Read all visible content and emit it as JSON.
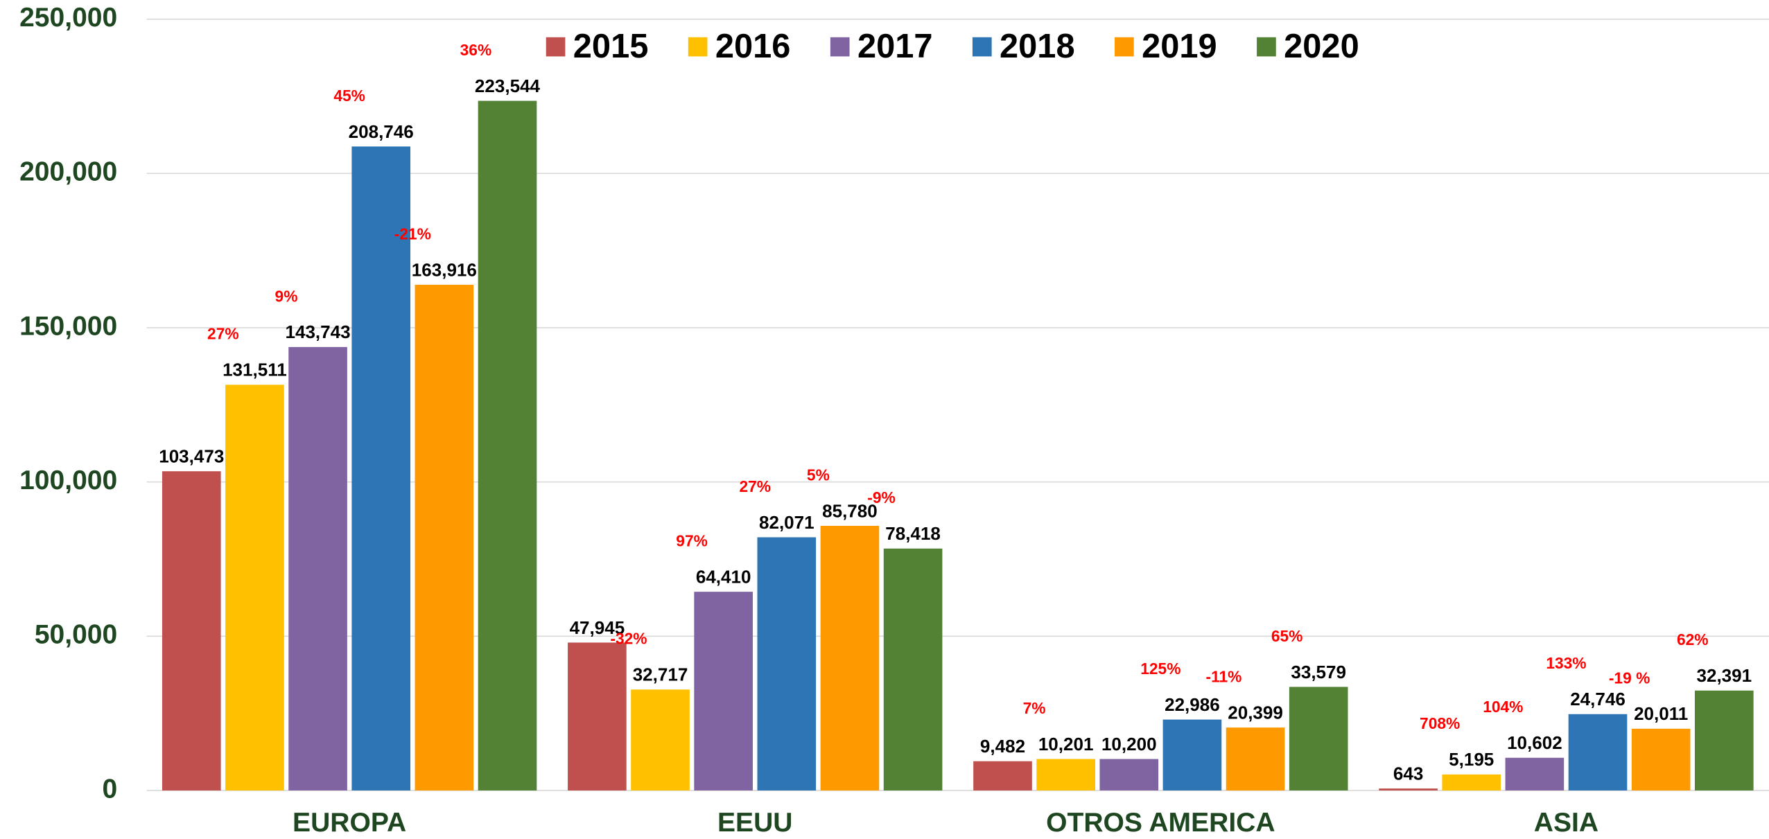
{
  "chart_data": {
    "type": "bar",
    "categories": [
      "EUROPA",
      "EEUU",
      "OTROS AMERICA",
      "ASIA"
    ],
    "series": [
      {
        "name": "2015",
        "color": "#c0504d",
        "values": [
          103473,
          47945,
          9482,
          643
        ],
        "value_labels": [
          "103,473",
          "47,945",
          "9,482",
          "643"
        ]
      },
      {
        "name": "2016",
        "color": "#ffc000",
        "values": [
          131511,
          32717,
          10201,
          5195
        ],
        "value_labels": [
          "131,511",
          "32,717",
          "10,201",
          "5,195"
        ],
        "change_labels": [
          "27%",
          "-32%",
          "7%",
          "708%"
        ]
      },
      {
        "name": "2017",
        "color": "#8064a2",
        "values": [
          143743,
          64410,
          10200,
          10602
        ],
        "value_labels": [
          "143,743",
          "64,410",
          "10,200",
          "10,602"
        ],
        "change_labels": [
          "9%",
          "97%",
          null,
          "104%"
        ]
      },
      {
        "name": "2018",
        "color": "#2e75b6",
        "values": [
          208746,
          82071,
          22986,
          24746
        ],
        "value_labels": [
          "208,746",
          "82,071",
          "22,986",
          "24,746"
        ],
        "change_labels": [
          "45%",
          "27%",
          "125%",
          "133%"
        ]
      },
      {
        "name": "2019",
        "color": "#ff9900",
        "values": [
          163916,
          85780,
          20399,
          20011
        ],
        "value_labels": [
          "163,916",
          "85,780",
          "20,399",
          "20,011"
        ],
        "change_labels": [
          "-21%",
          "5%",
          "-11%",
          "-19 %"
        ]
      },
      {
        "name": "2020",
        "color": "#548235",
        "values": [
          223544,
          78418,
          33579,
          32391
        ],
        "value_labels": [
          "223,544",
          "78,418",
          "33,579",
          "32,391"
        ],
        "change_labels": [
          "36%",
          "-9%",
          "65%",
          "62%"
        ]
      }
    ],
    "ylim": [
      0,
      250000
    ],
    "yticks": [
      0,
      {
        "value": 50000,
        "label": "50,000"
      },
      {
        "value": 100000,
        "label": "100,000"
      },
      {
        "value": 150000,
        "label": "150,000"
      },
      {
        "value": 200000,
        "label": "200,000"
      },
      {
        "value": 250000,
        "label": "250,000"
      }
    ],
    "grid": true,
    "legend": "top"
  }
}
